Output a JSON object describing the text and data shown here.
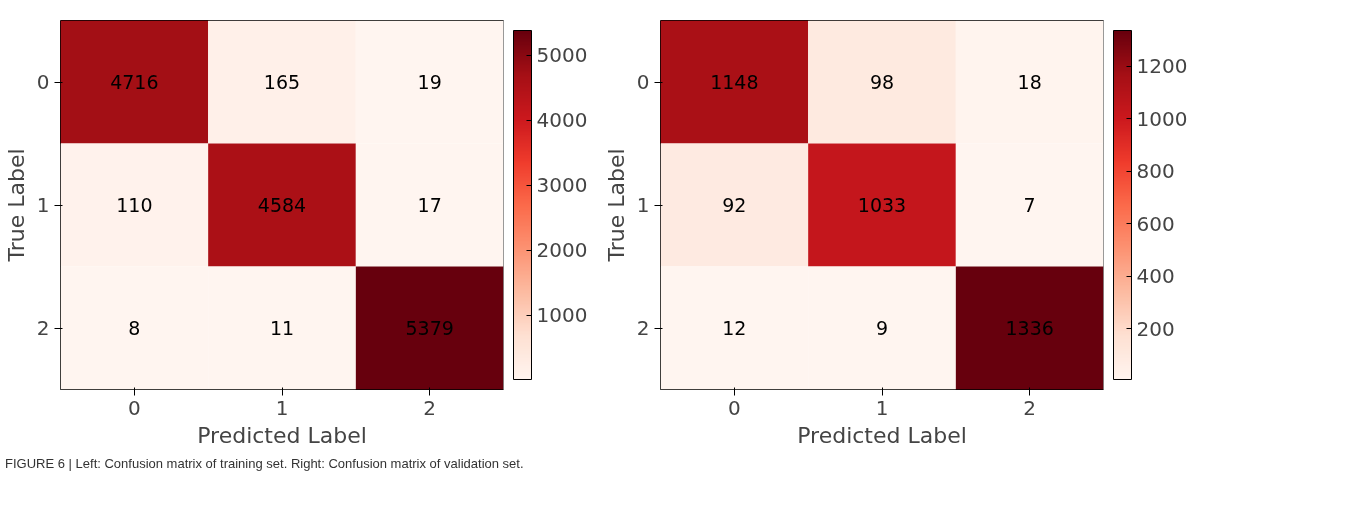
{
  "chart_data": [
    {
      "type": "heatmap",
      "xlabel": "Predicted Label",
      "ylabel": "True Label",
      "categories": [
        "0",
        "1",
        "2"
      ],
      "y_categories": [
        "0",
        "1",
        "2"
      ],
      "cells": [
        [
          4716,
          165,
          19
        ],
        [
          110,
          4584,
          17
        ],
        [
          8,
          11,
          5379
        ]
      ],
      "data_labels": true,
      "clim": [
        8,
        5379
      ],
      "cticks": [
        1000,
        2000,
        3000,
        4000,
        5000
      ],
      "annotations": [
        "FIGURE 6 | Left: Confusion matrix of training set. Right: Confusion matrix of validation set."
      ]
    },
    {
      "type": "heatmap",
      "xlabel": "Predicted Label",
      "ylabel": "True Label",
      "categories": [
        "0",
        "1",
        "2"
      ],
      "y_categories": [
        "0",
        "1",
        "2"
      ],
      "cells": [
        [
          1148,
          98,
          18
        ],
        [
          92,
          1033,
          7
        ],
        [
          12,
          9,
          1336
        ]
      ],
      "data_labels": true,
      "clim": [
        7,
        1336
      ],
      "cticks": [
        200,
        400,
        600,
        800,
        1000,
        1200
      ]
    }
  ]
}
